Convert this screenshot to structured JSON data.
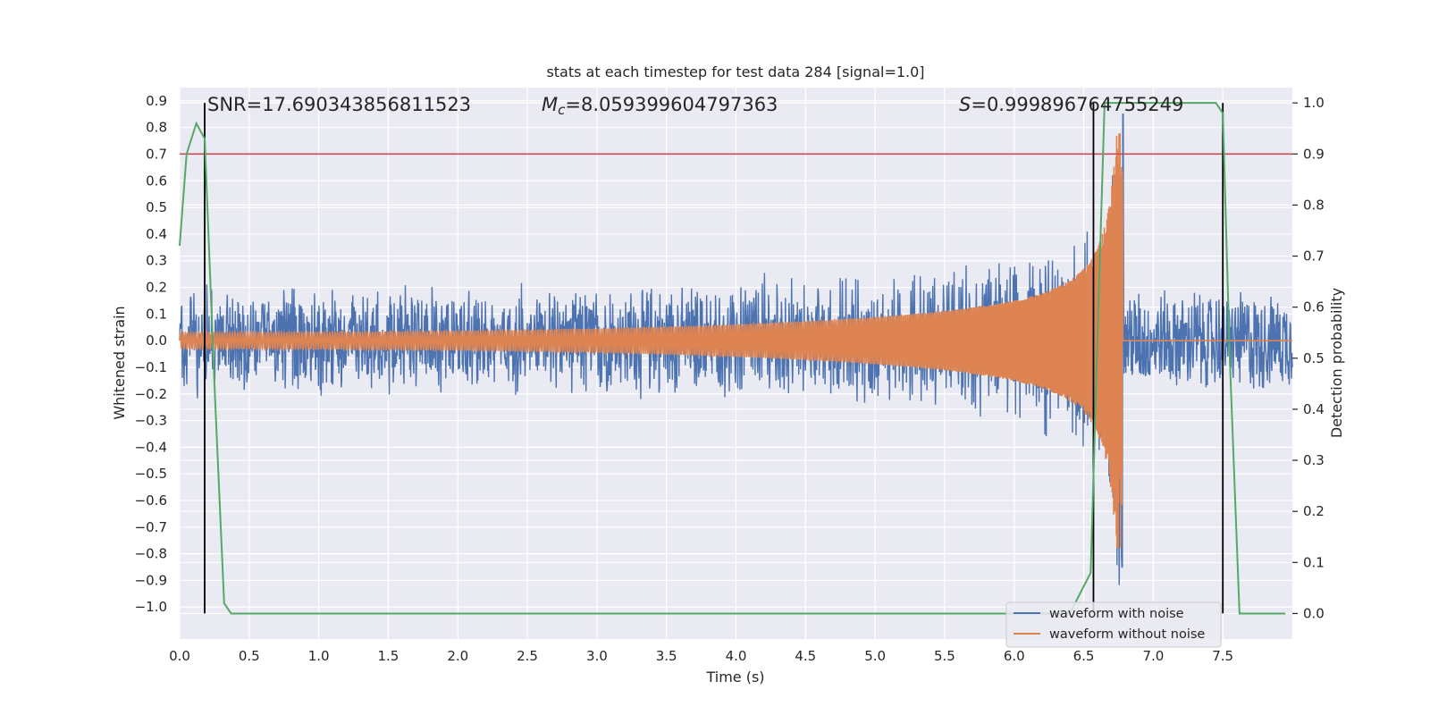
{
  "chart_data": {
    "type": "line",
    "title": "stats at each timestep for test data 284 [signal=1.0]",
    "xlabel": "Time (s)",
    "ylabel": "Whitened strain",
    "y2label": "Detection probability",
    "xlim": [
      0.0,
      8.0
    ],
    "ylim": [
      -1.12,
      0.95
    ],
    "y2lim": [
      -0.05,
      1.03
    ],
    "xticks": [
      "0.0",
      "0.5",
      "1.0",
      "1.5",
      "2.0",
      "2.5",
      "3.0",
      "3.5",
      "4.0",
      "4.5",
      "5.0",
      "5.5",
      "6.0",
      "6.5",
      "7.0",
      "7.5"
    ],
    "yticks": [
      "0.9",
      "0.8",
      "0.7",
      "0.6",
      "0.5",
      "0.4",
      "0.3",
      "0.2",
      "0.1",
      "0.0",
      "−0.1",
      "−0.2",
      "−0.3",
      "−0.4",
      "−0.5",
      "−0.6",
      "−0.7",
      "−0.8",
      "−0.9",
      "−1.0"
    ],
    "y2ticks": [
      "1.0",
      "0.9",
      "0.8",
      "0.7",
      "0.6",
      "0.5",
      "0.4",
      "0.3",
      "0.2",
      "0.1",
      "0.0"
    ],
    "annotations": {
      "snr": "SNR=17.690343856811523",
      "mc_symbol": "M",
      "mc_sub": "c",
      "mc_value": "=8.059399604797363",
      "s_symbol": "S",
      "s_value": "=0.999896764755249"
    },
    "series": [
      {
        "name": "waveform with noise",
        "axis": "left",
        "color": "#4c72b0",
        "description": "noisy whitened strain, amplitude ~0.2 rising to ~0.4 near merger, spike to ~0.85 at t≈6.78 s",
        "noise_amplitude": 0.2,
        "merger_time": 6.78,
        "merger_peak": 0.85
      },
      {
        "name": "waveform without noise",
        "axis": "left",
        "color": "#dd8452",
        "description": "chirp signal, amplitude ~0.03 at t=0 growing to ~0.78 at merger t≈6.78 s, flat 0 afterwards",
        "start_amplitude": 0.03,
        "merger_time": 6.78,
        "merger_peak": 0.78
      },
      {
        "name": "detection probability",
        "axis": "right",
        "color": "#55a868",
        "x": [
          0.0,
          0.05,
          0.12,
          0.18,
          0.25,
          0.32,
          0.37,
          0.45,
          6.4,
          6.55,
          6.6,
          6.65,
          6.8,
          7.0,
          7.45,
          7.5,
          7.55,
          7.62,
          7.7,
          7.95
        ],
        "y": [
          0.72,
          0.9,
          0.96,
          0.93,
          0.45,
          0.02,
          0.0,
          0.0,
          0.0,
          0.08,
          0.55,
          1.0,
          1.0,
          1.0,
          1.0,
          0.98,
          0.5,
          0.0,
          0.0,
          0.0
        ]
      }
    ],
    "threshold": {
      "axis": "right",
      "value": 0.9,
      "color": "#c44e52"
    },
    "vertical_lines": {
      "x": [
        0.18,
        6.57,
        7.5
      ],
      "right_top": 1.0,
      "color": "#000000"
    },
    "legend": {
      "position": "lower-right",
      "entries": [
        "waveform with noise",
        "waveform without noise"
      ]
    }
  }
}
